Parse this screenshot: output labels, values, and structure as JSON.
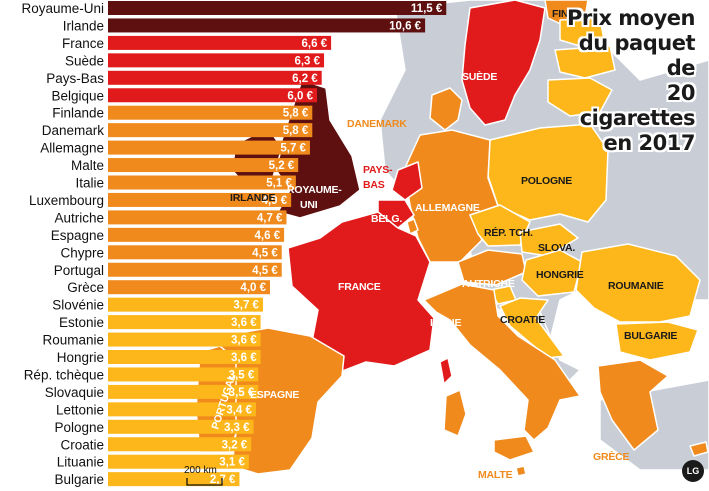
{
  "title": [
    "Prix moyen",
    "du paquet de",
    "20 cigarettes",
    "en 2017"
  ],
  "colors": {
    "tier_1": "#5e0f0f",
    "tier_2": "#e11b1b",
    "tier_3": "#f08a1c",
    "tier_4": "#fdb71a",
    "no_data": "#c9ced6",
    "sea": "#ffffff"
  },
  "ranking": [
    {
      "country": "Royaume-Uni",
      "price": "11,5 €",
      "value": 11.5,
      "tier": "tier_1"
    },
    {
      "country": "Irlande",
      "price": "10,6 €",
      "value": 10.6,
      "tier": "tier_1"
    },
    {
      "country": "France",
      "price": "6,6 €",
      "value": 6.6,
      "tier": "tier_2"
    },
    {
      "country": "Suède",
      "price": "6,3 €",
      "value": 6.3,
      "tier": "tier_2"
    },
    {
      "country": "Pays-Bas",
      "price": "6,2 €",
      "value": 6.2,
      "tier": "tier_2"
    },
    {
      "country": "Belgique",
      "price": "6,0 €",
      "value": 6.0,
      "tier": "tier_2"
    },
    {
      "country": "Finlande",
      "price": "5,8 €",
      "value": 5.8,
      "tier": "tier_3"
    },
    {
      "country": "Danemark",
      "price": "5,8 €",
      "value": 5.8,
      "tier": "tier_3"
    },
    {
      "country": "Allemagne",
      "price": "5,7 €",
      "value": 5.7,
      "tier": "tier_3"
    },
    {
      "country": "Malte",
      "price": "5,2 €",
      "value": 5.2,
      "tier": "tier_3"
    },
    {
      "country": "Italie",
      "price": "5,1 €",
      "value": 5.1,
      "tier": "tier_3"
    },
    {
      "country": "Luxembourg",
      "price": "4,9 €",
      "value": 4.9,
      "tier": "tier_3"
    },
    {
      "country": "Autriche",
      "price": "4,7 €",
      "value": 4.7,
      "tier": "tier_3"
    },
    {
      "country": "Espagne",
      "price": "4,6 €",
      "value": 4.6,
      "tier": "tier_3"
    },
    {
      "country": "Chypre",
      "price": "4,5 €",
      "value": 4.5,
      "tier": "tier_3"
    },
    {
      "country": "Portugal",
      "price": "4,5 €",
      "value": 4.5,
      "tier": "tier_3"
    },
    {
      "country": "Grèce",
      "price": "4,0 €",
      "value": 4.0,
      "tier": "tier_3"
    },
    {
      "country": "Slovénie",
      "price": "3,7 €",
      "value": 3.7,
      "tier": "tier_4"
    },
    {
      "country": "Estonie",
      "price": "3,6 €",
      "value": 3.6,
      "tier": "tier_4"
    },
    {
      "country": "Roumanie",
      "price": "3,6 €",
      "value": 3.6,
      "tier": "tier_4"
    },
    {
      "country": "Hongrie",
      "price": "3,6 €",
      "value": 3.6,
      "tier": "tier_4"
    },
    {
      "country": "Rép. tchèque",
      "price": "3,5 €",
      "value": 3.5,
      "tier": "tier_4"
    },
    {
      "country": "Slovaquie",
      "price": "3,5 €",
      "value": 3.5,
      "tier": "tier_4"
    },
    {
      "country": "Lettonie",
      "price": "3,4 €",
      "value": 3.4,
      "tier": "tier_4"
    },
    {
      "country": "Pologne",
      "price": "3,3 €",
      "value": 3.3,
      "tier": "tier_4"
    },
    {
      "country": "Croatie",
      "price": "3,2 €",
      "value": 3.2,
      "tier": "tier_4"
    },
    {
      "country": "Lituanie",
      "price": "3,1 €",
      "value": 3.1,
      "tier": "tier_4"
    },
    {
      "country": "Bulgarie",
      "price": "2,7 €",
      "value": 2.7,
      "tier": "tier_4"
    }
  ],
  "map_labels": {
    "fin": "FIN.",
    "suede": "SUÈDE",
    "danemark": "DANEMARK",
    "irlande": "IRLANDE",
    "royaume_uni": [
      "ROYAUME-",
      "UNI"
    ],
    "pays_bas": [
      "PAYS-",
      "BAS"
    ],
    "belg": "BELG.",
    "allemagne": "ALLEMAGNE",
    "pologne": "POLOGNE",
    "rep_tch": "RÉP. TCH.",
    "slova": "SLOVA.",
    "hongrie": "HONGRIE",
    "roumanie": "ROUMANIE",
    "autriche": "AUTRICHE",
    "france": "FRANCE",
    "italie": "ITALIE",
    "croatie": "CROATIE",
    "bulgarie": "BULGARIE",
    "espagne": "ESPAGNE",
    "portugal": "PORTUGAL",
    "malte": "MALTE",
    "grece": "GRÈCE"
  },
  "scale_label": "200 km",
  "logo": "LG"
}
